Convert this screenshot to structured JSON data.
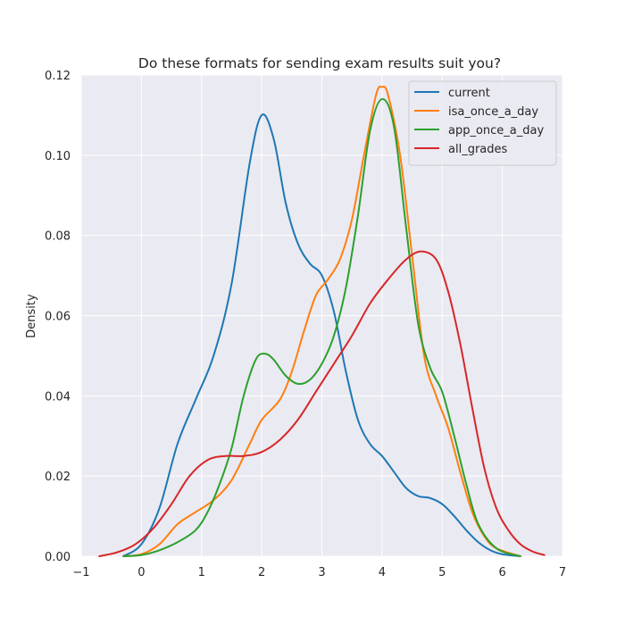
{
  "chart_data": {
    "type": "line",
    "title": "Do these formats for sending exam results suit you?",
    "xlabel": "",
    "ylabel": "Density",
    "xlim": [
      -1,
      7
    ],
    "ylim": [
      0,
      0.12
    ],
    "xticks": [
      "−1",
      "0",
      "1",
      "2",
      "3",
      "4",
      "5",
      "6",
      "7"
    ],
    "yticks": [
      "0.00",
      "0.02",
      "0.04",
      "0.06",
      "0.08",
      "0.10",
      "0.12"
    ],
    "grid": true,
    "legend_position": "top-right",
    "series": [
      {
        "name": "current",
        "color": "#1f77b4",
        "points": [
          [
            -0.3,
            0.0
          ],
          [
            0.0,
            0.003
          ],
          [
            0.3,
            0.012
          ],
          [
            0.6,
            0.028
          ],
          [
            0.9,
            0.039
          ],
          [
            1.2,
            0.05
          ],
          [
            1.5,
            0.068
          ],
          [
            1.8,
            0.098
          ],
          [
            2.0,
            0.11
          ],
          [
            2.2,
            0.104
          ],
          [
            2.4,
            0.088
          ],
          [
            2.6,
            0.078
          ],
          [
            2.8,
            0.073
          ],
          [
            3.0,
            0.07
          ],
          [
            3.2,
            0.061
          ],
          [
            3.4,
            0.046
          ],
          [
            3.6,
            0.034
          ],
          [
            3.8,
            0.028
          ],
          [
            4.0,
            0.025
          ],
          [
            4.2,
            0.021
          ],
          [
            4.4,
            0.017
          ],
          [
            4.6,
            0.015
          ],
          [
            4.8,
            0.0145
          ],
          [
            5.0,
            0.013
          ],
          [
            5.2,
            0.01
          ],
          [
            5.4,
            0.0065
          ],
          [
            5.6,
            0.0035
          ],
          [
            5.8,
            0.0015
          ],
          [
            6.0,
            0.0005
          ],
          [
            6.3,
            0.0
          ]
        ]
      },
      {
        "name": "isa_once_a_day",
        "color": "#ff7f0e",
        "points": [
          [
            -0.3,
            0.0
          ],
          [
            0.0,
            0.0005
          ],
          [
            0.3,
            0.003
          ],
          [
            0.6,
            0.008
          ],
          [
            0.9,
            0.011
          ],
          [
            1.2,
            0.014
          ],
          [
            1.5,
            0.019
          ],
          [
            1.8,
            0.028
          ],
          [
            2.0,
            0.034
          ],
          [
            2.3,
            0.039
          ],
          [
            2.5,
            0.046
          ],
          [
            2.7,
            0.056
          ],
          [
            2.9,
            0.065
          ],
          [
            3.1,
            0.069
          ],
          [
            3.3,
            0.074
          ],
          [
            3.5,
            0.084
          ],
          [
            3.7,
            0.1
          ],
          [
            3.9,
            0.115
          ],
          [
            4.0,
            0.117
          ],
          [
            4.1,
            0.115
          ],
          [
            4.3,
            0.1
          ],
          [
            4.5,
            0.075
          ],
          [
            4.7,
            0.05
          ],
          [
            4.9,
            0.04
          ],
          [
            5.1,
            0.032
          ],
          [
            5.3,
            0.021
          ],
          [
            5.5,
            0.011
          ],
          [
            5.7,
            0.005
          ],
          [
            5.9,
            0.002
          ],
          [
            6.3,
            0.0
          ]
        ]
      },
      {
        "name": "app_once_a_day",
        "color": "#2ca02c",
        "points": [
          [
            -0.3,
            0.0
          ],
          [
            0.0,
            0.0003
          ],
          [
            0.3,
            0.0015
          ],
          [
            0.6,
            0.0035
          ],
          [
            0.9,
            0.0065
          ],
          [
            1.1,
            0.011
          ],
          [
            1.3,
            0.018
          ],
          [
            1.5,
            0.027
          ],
          [
            1.7,
            0.04
          ],
          [
            1.9,
            0.049
          ],
          [
            2.05,
            0.0505
          ],
          [
            2.2,
            0.049
          ],
          [
            2.4,
            0.045
          ],
          [
            2.6,
            0.043
          ],
          [
            2.8,
            0.044
          ],
          [
            3.0,
            0.048
          ],
          [
            3.2,
            0.055
          ],
          [
            3.4,
            0.067
          ],
          [
            3.6,
            0.085
          ],
          [
            3.8,
            0.106
          ],
          [
            4.0,
            0.114
          ],
          [
            4.2,
            0.107
          ],
          [
            4.4,
            0.082
          ],
          [
            4.6,
            0.058
          ],
          [
            4.8,
            0.047
          ],
          [
            5.0,
            0.041
          ],
          [
            5.2,
            0.03
          ],
          [
            5.4,
            0.018
          ],
          [
            5.6,
            0.008
          ],
          [
            5.9,
            0.002
          ],
          [
            6.3,
            0.0
          ]
        ]
      },
      {
        "name": "all_grades",
        "color": "#d62728",
        "points": [
          [
            -0.7,
            0.0
          ],
          [
            -0.4,
            0.001
          ],
          [
            -0.1,
            0.003
          ],
          [
            0.2,
            0.007
          ],
          [
            0.5,
            0.013
          ],
          [
            0.8,
            0.02
          ],
          [
            1.1,
            0.024
          ],
          [
            1.4,
            0.025
          ],
          [
            1.7,
            0.025
          ],
          [
            2.0,
            0.026
          ],
          [
            2.3,
            0.029
          ],
          [
            2.6,
            0.034
          ],
          [
            2.9,
            0.041
          ],
          [
            3.2,
            0.048
          ],
          [
            3.5,
            0.055
          ],
          [
            3.8,
            0.063
          ],
          [
            4.1,
            0.069
          ],
          [
            4.4,
            0.074
          ],
          [
            4.65,
            0.076
          ],
          [
            4.9,
            0.074
          ],
          [
            5.1,
            0.066
          ],
          [
            5.3,
            0.053
          ],
          [
            5.5,
            0.037
          ],
          [
            5.7,
            0.022
          ],
          [
            5.9,
            0.012
          ],
          [
            6.1,
            0.0065
          ],
          [
            6.3,
            0.003
          ],
          [
            6.5,
            0.0012
          ],
          [
            6.7,
            0.0003
          ]
        ]
      }
    ]
  }
}
